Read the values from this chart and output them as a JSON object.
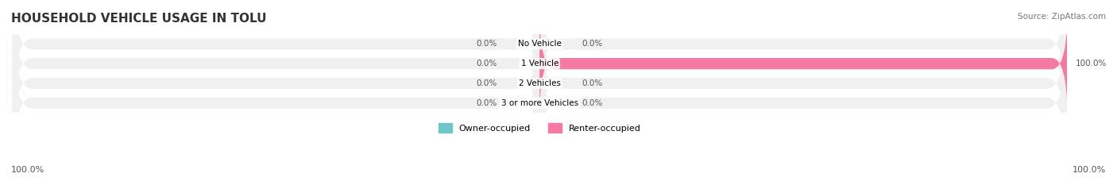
{
  "title": "HOUSEHOLD VEHICLE USAGE IN TOLU",
  "source": "Source: ZipAtlas.com",
  "categories": [
    "No Vehicle",
    "1 Vehicle",
    "2 Vehicles",
    "3 or more Vehicles"
  ],
  "owner_values": [
    0.0,
    0.0,
    0.0,
    0.0
  ],
  "renter_values": [
    0.0,
    100.0,
    0.0,
    0.0
  ],
  "owner_color": "#6ec6c6",
  "renter_color": "#f579a0",
  "bar_bg_color": "#f0f0f0",
  "bar_height": 0.55,
  "legend_owner": "Owner-occupied",
  "legend_renter": "Renter-occupied",
  "left_label": "100.0%",
  "right_label": "100.0%",
  "xlim": [
    -100,
    100
  ],
  "figsize": [
    14.06,
    2.33
  ],
  "dpi": 100
}
